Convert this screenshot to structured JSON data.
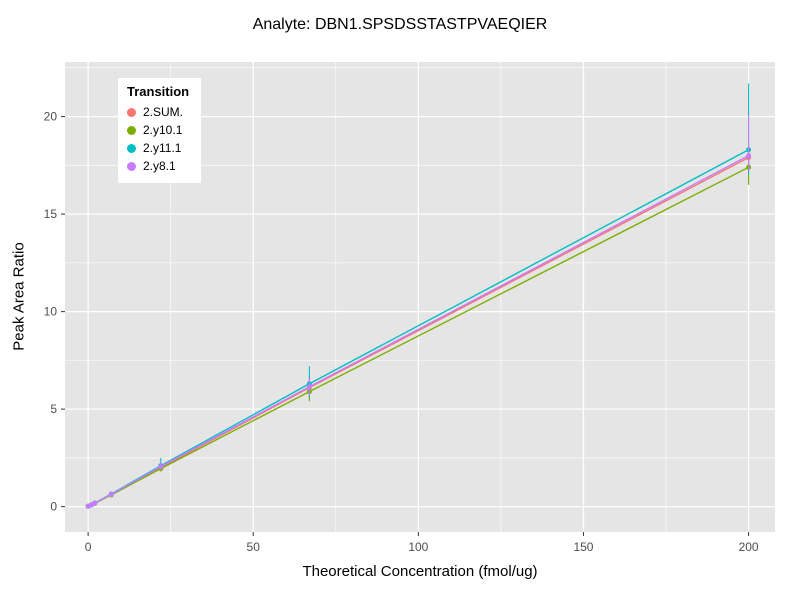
{
  "chart_data": {
    "type": "line",
    "title": "Analyte: DBN1.SPSDSSTASTPVAEQIER",
    "xlabel": "Theoretical Concentration (fmol/ug)",
    "ylabel": "Peak Area Ratio",
    "legend_title": "Transition",
    "legend_position": "top-left-inset",
    "xlim": [
      -7,
      208
    ],
    "ylim": [
      -1.3,
      22.8
    ],
    "x_ticks": [
      0,
      50,
      100,
      150,
      200
    ],
    "x_minor_ticks": [
      25,
      75,
      125,
      175
    ],
    "y_ticks": [
      0,
      5,
      10,
      15,
      20
    ],
    "y_minor_ticks": [
      2.5,
      7.5,
      12.5,
      17.5,
      22.5
    ],
    "grid": true,
    "panel_bg": "#E5E5E5",
    "grid_color": "#FFFFFF",
    "tick_label_color": "#4d4d4d",
    "tick_mark_color": "#333333",
    "series": [
      {
        "name": "2.SUM.",
        "color": "#F8766D",
        "points": [
          {
            "x": 0,
            "y": 0.02
          },
          {
            "x": 1,
            "y": 0.09
          },
          {
            "x": 2,
            "y": 0.18
          },
          {
            "x": 7,
            "y": 0.63
          },
          {
            "x": 22,
            "y": 2.0,
            "lo": 1.85,
            "hi": 2.2
          },
          {
            "x": 67,
            "y": 6.1,
            "lo": 5.5,
            "hi": 6.7
          },
          {
            "x": 200,
            "y": 17.9,
            "lo": 17.3,
            "hi": 18.6
          }
        ]
      },
      {
        "name": "2.y10.1",
        "color": "#7CAE00",
        "points": [
          {
            "x": 0,
            "y": 0.02
          },
          {
            "x": 1,
            "y": 0.09
          },
          {
            "x": 2,
            "y": 0.17
          },
          {
            "x": 7,
            "y": 0.6
          },
          {
            "x": 22,
            "y": 1.95,
            "lo": 1.8,
            "hi": 2.1
          },
          {
            "x": 67,
            "y": 5.9,
            "lo": 5.4,
            "hi": 6.3
          },
          {
            "x": 200,
            "y": 17.4,
            "lo": 16.5,
            "hi": 18.3
          }
        ]
      },
      {
        "name": "2.y11.1",
        "color": "#00BFC4",
        "points": [
          {
            "x": 0,
            "y": 0.02
          },
          {
            "x": 1,
            "y": 0.09
          },
          {
            "x": 2,
            "y": 0.18
          },
          {
            "x": 7,
            "y": 0.65
          },
          {
            "x": 22,
            "y": 2.1,
            "lo": 1.9,
            "hi": 2.5
          },
          {
            "x": 67,
            "y": 6.3,
            "lo": 5.6,
            "hi": 7.2
          },
          {
            "x": 200,
            "y": 18.3,
            "lo": 17.0,
            "hi": 21.7
          }
        ]
      },
      {
        "name": "2.y8.1",
        "color": "#C77CFF",
        "points": [
          {
            "x": 0,
            "y": 0.02
          },
          {
            "x": 1,
            "y": 0.09
          },
          {
            "x": 2,
            "y": 0.18
          },
          {
            "x": 7,
            "y": 0.63
          },
          {
            "x": 22,
            "y": 2.05,
            "lo": 1.9,
            "hi": 2.3
          },
          {
            "x": 67,
            "y": 6.15,
            "lo": 5.7,
            "hi": 6.6
          },
          {
            "x": 200,
            "y": 18.0,
            "lo": 17.2,
            "hi": 20.1
          }
        ]
      }
    ]
  }
}
